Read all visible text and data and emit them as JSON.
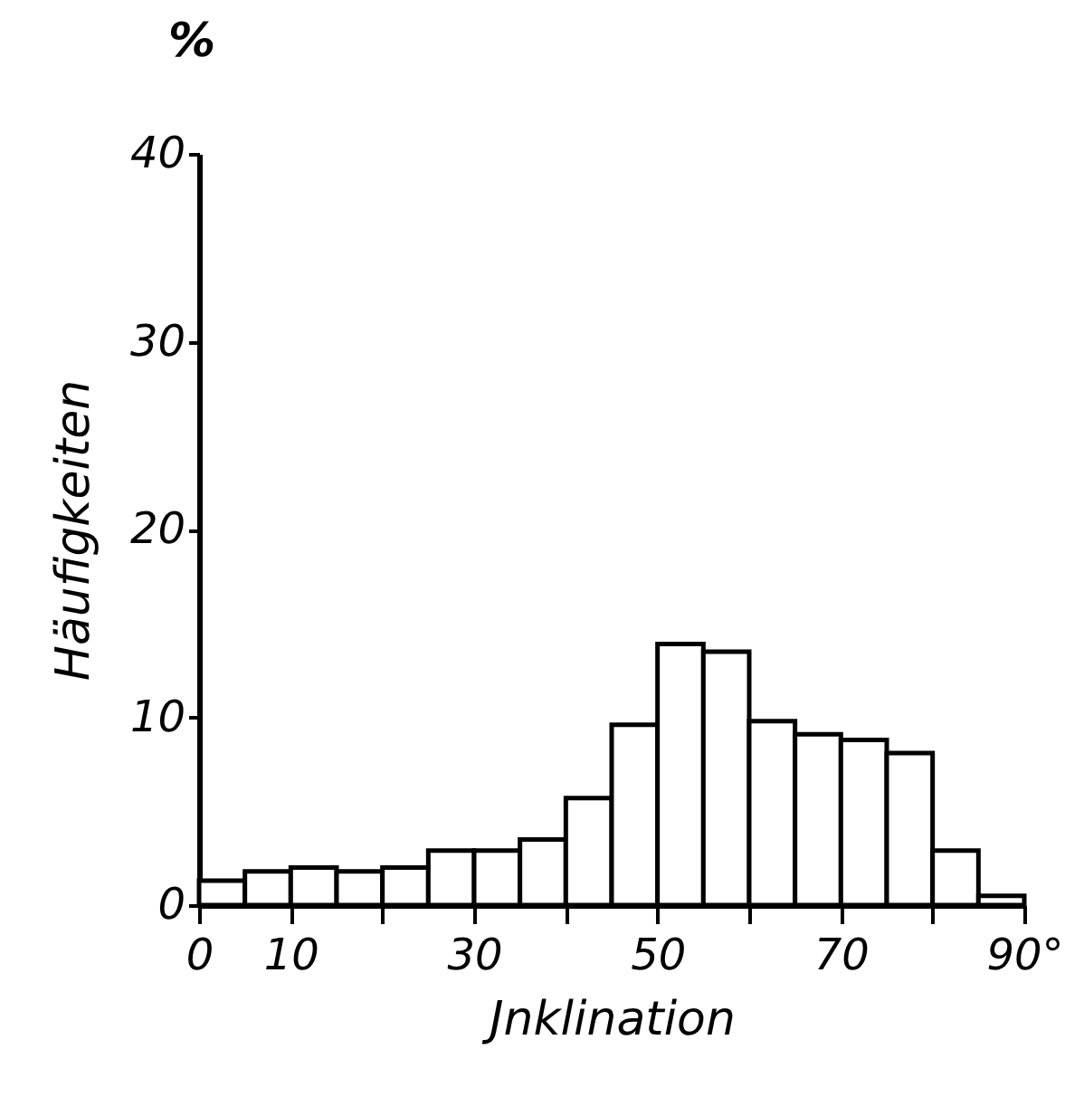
{
  "chart_data": {
    "type": "histogram",
    "xlabel": "Jnklination",
    "ylabel": "Häufigkeiten",
    "annotations": [
      "%"
    ],
    "bins": [
      0,
      5,
      10,
      15,
      20,
      25,
      30,
      35,
      40,
      45,
      50,
      55,
      60,
      65,
      70,
      75,
      80,
      85,
      90
    ],
    "values": [
      1.3,
      1.8,
      2.0,
      1.8,
      2.0,
      2.9,
      2.9,
      3.5,
      5.7,
      9.6,
      13.9,
      13.5,
      9.8,
      9.1,
      8.8,
      8.1,
      2.9,
      0.5
    ],
    "color": "#ffffff",
    "xlim": [
      0,
      90
    ],
    "xticks": [
      0,
      10,
      {
        "value": 20,
        "label": null
      },
      30,
      {
        "value": 40,
        "label": null
      },
      50,
      {
        "value": 60,
        "label": null
      },
      70,
      {
        "value": 80,
        "label": null
      },
      {
        "value": 90,
        "label": "90°"
      }
    ],
    "ylim": [
      0,
      40
    ],
    "yticks": [
      0,
      10,
      20,
      30,
      40
    ],
    "grid": false
  }
}
